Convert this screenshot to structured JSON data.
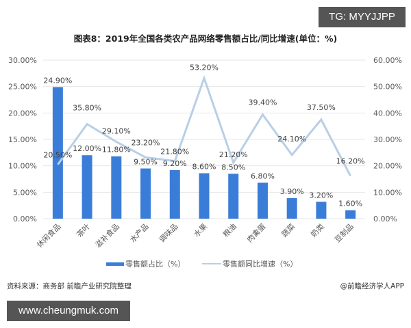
{
  "badges": {
    "tg": "TG: MYYJJPP",
    "site": "www.cheungmuk.com"
  },
  "footer": {
    "source": "资料来源：商务部 前瞻产业研究院整理",
    "credit": "@前瞻经济学人APP"
  },
  "colors": {
    "bar": "#3A7DD8",
    "line": "#B8CFE6",
    "grid": "#E6E6E6",
    "axis_text": "#595959",
    "label_text": "#404040"
  },
  "chart_data": {
    "type": "bar+line",
    "title": "图表8：2019年全国各类农产品网络零售额占比/同比增速(单位：%)",
    "categories": [
      "休闲食品",
      "茶叶",
      "滋补食品",
      "水产品",
      "调味品",
      "水果",
      "粮油",
      "肉禽蛋",
      "蔬菜",
      "奶类",
      "豆制品"
    ],
    "series": [
      {
        "name": "零售额占比（%）",
        "type": "bar",
        "axis": "left",
        "values": [
          24.9,
          12.0,
          11.8,
          9.5,
          9.2,
          8.6,
          8.5,
          6.8,
          3.9,
          3.2,
          1.6
        ],
        "labels": [
          "24.90%",
          "12.00%",
          "11.80%",
          "9.50%",
          "9.20%",
          "8.60%",
          "8.50%",
          "6.80%",
          "3.90%",
          "3.20%",
          "1.60%"
        ]
      },
      {
        "name": "零售额同比增速（%）",
        "type": "line",
        "axis": "right",
        "values": [
          20.5,
          35.8,
          29.1,
          23.2,
          21.8,
          53.2,
          21.2,
          39.4,
          24.1,
          37.5,
          16.2
        ],
        "labels": [
          "20.50%",
          "35.80%",
          "29.10%",
          "23.20%",
          "21.80%",
          "53.20%",
          "21.20%",
          "39.40%",
          "24.10%",
          "37.50%",
          "16.20%"
        ]
      }
    ],
    "left_axis": {
      "ylim": [
        0,
        30
      ],
      "ticks": [
        "0.00%",
        "5.00%",
        "10.00%",
        "15.00%",
        "20.00%",
        "25.00%",
        "30.00%"
      ]
    },
    "right_axis": {
      "ylim": [
        0,
        60
      ],
      "ticks": [
        "0.00%",
        "10.00%",
        "20.00%",
        "30.00%",
        "40.00%",
        "50.00%",
        "60.00%"
      ]
    },
    "grid": true,
    "legend_position": "bottom"
  }
}
